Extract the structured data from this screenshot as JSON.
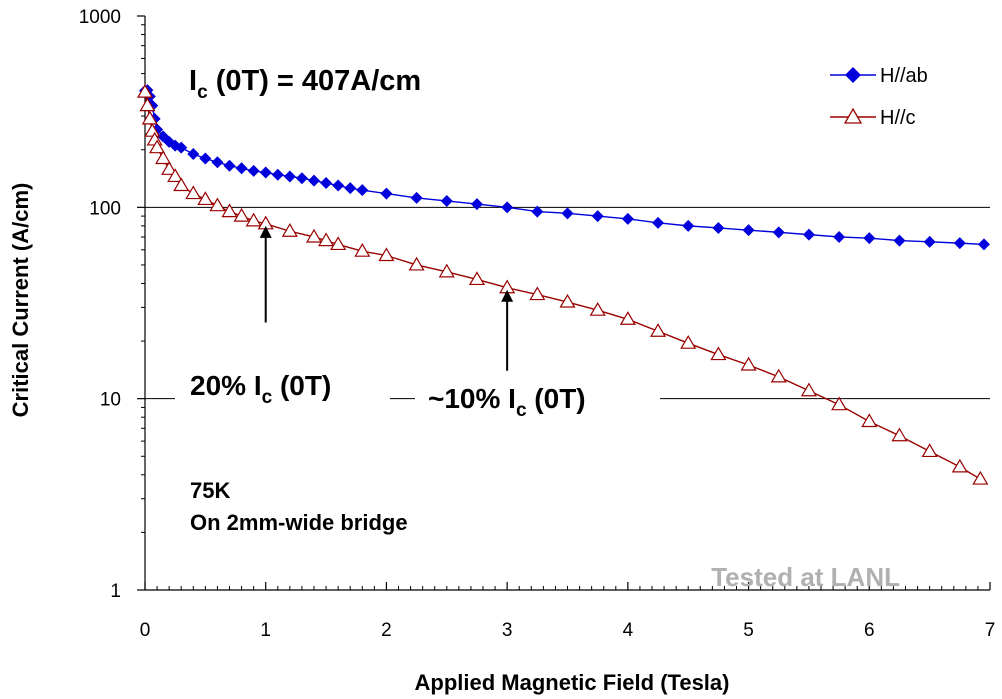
{
  "chart_data": {
    "type": "scatter",
    "xlabel": "Applied Magnetic Field (Tesla)",
    "ylabel": "Critical Current (A/cm)",
    "xlim": [
      0,
      7
    ],
    "ylim": [
      1,
      1000
    ],
    "yscale": "log",
    "x_ticks": [
      "0",
      "1",
      "2",
      "3",
      "4",
      "5",
      "6",
      "7"
    ],
    "y_ticks": [
      "1",
      "10",
      "100",
      "1000"
    ],
    "gridlines_y": [
      10,
      100
    ],
    "legend_position": "top-right",
    "series": [
      {
        "name": "H//ab",
        "color": "#0000dd",
        "marker": "filled-diamond",
        "x": [
          0,
          0.02,
          0.04,
          0.06,
          0.08,
          0.1,
          0.15,
          0.2,
          0.25,
          0.3,
          0.4,
          0.5,
          0.6,
          0.7,
          0.8,
          0.9,
          1.0,
          1.1,
          1.2,
          1.3,
          1.4,
          1.5,
          1.6,
          1.7,
          1.8,
          2.0,
          2.25,
          2.5,
          2.75,
          3.0,
          3.25,
          3.5,
          3.75,
          4.0,
          4.25,
          4.5,
          4.75,
          5.0,
          5.25,
          5.5,
          5.75,
          6.0,
          6.25,
          6.5,
          6.75,
          6.95
        ],
        "y": [
          407,
          410,
          380,
          340,
          290,
          255,
          235,
          220,
          210,
          205,
          190,
          180,
          172,
          165,
          160,
          155,
          152,
          148,
          145,
          142,
          138,
          134,
          130,
          126,
          123,
          118,
          112,
          108,
          104,
          100,
          95,
          93,
          90,
          87,
          83,
          80,
          78,
          76,
          74,
          72,
          70,
          69,
          67,
          66,
          65,
          64
        ]
      },
      {
        "name": "H//c",
        "color": "#990000",
        "marker": "open-triangle",
        "x": [
          0,
          0.02,
          0.04,
          0.06,
          0.08,
          0.1,
          0.15,
          0.2,
          0.25,
          0.3,
          0.4,
          0.5,
          0.6,
          0.7,
          0.8,
          0.9,
          1.0,
          1.2,
          1.4,
          1.5,
          1.6,
          1.8,
          2.0,
          2.25,
          2.5,
          2.75,
          3.0,
          3.25,
          3.5,
          3.75,
          4.0,
          4.25,
          4.5,
          4.75,
          5.0,
          5.25,
          5.5,
          5.75,
          6.0,
          6.25,
          6.5,
          6.75,
          6.92
        ],
        "y": [
          400,
          340,
          290,
          250,
          225,
          205,
          180,
          158,
          145,
          130,
          118,
          110,
          102,
          95,
          90,
          85,
          82,
          75,
          70,
          67,
          64,
          59,
          56,
          50,
          46,
          42,
          38,
          35,
          32,
          29,
          26,
          22.5,
          19.5,
          17,
          15,
          13,
          11,
          9.3,
          7.6,
          6.4,
          5.3,
          4.4,
          3.8
        ]
      }
    ],
    "annotations": {
      "ic_main": "I",
      "ic_main_sub": "c",
      "ic_main_rest": " (0T) = 407A/cm",
      "pct20_a": "20% I",
      "pct20_sub": "c",
      "pct20_b": " (0T)",
      "pct10_a": "~10% I",
      "pct10_sub": "c",
      "pct10_b": " (0T)",
      "temp": "75K",
      "bridge": "On 2mm-wide bridge",
      "lab": "Tested at LANL"
    },
    "arrows": [
      {
        "x": 1.0,
        "y_from": 25,
        "y_to": 82
      },
      {
        "x": 3.0,
        "y_from": 14,
        "y_to": 38
      }
    ]
  }
}
